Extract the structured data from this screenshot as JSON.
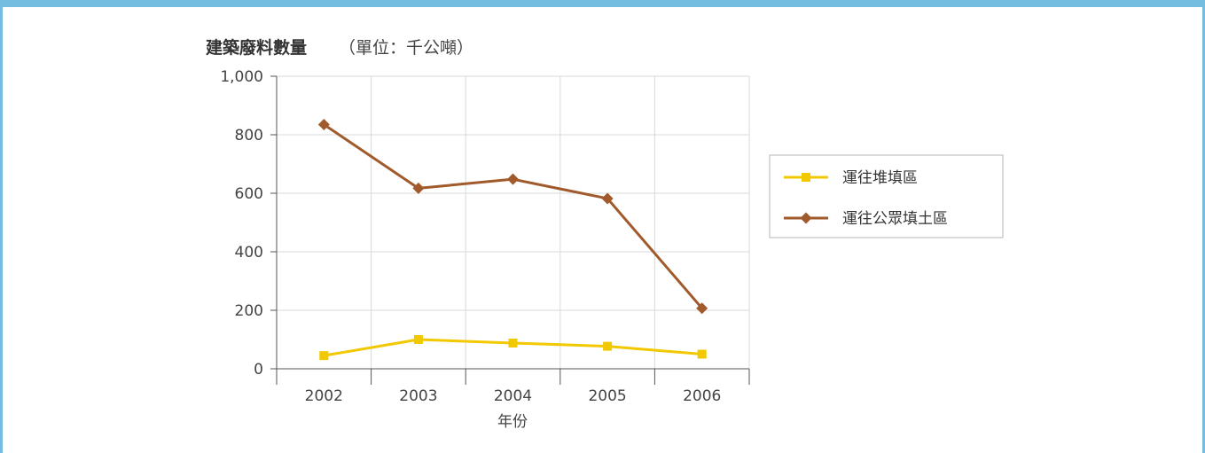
{
  "chart_data": {
    "type": "line",
    "title": "建築廢料數量",
    "title_unit": "（單位：千公噸）",
    "xlabel": "年份",
    "ylabel": "",
    "categories": [
      "2002",
      "2003",
      "2004",
      "2005",
      "2006"
    ],
    "ylim": [
      0,
      1000
    ],
    "yticks": [
      "0",
      "200",
      "400",
      "600",
      "800",
      "1,000"
    ],
    "grid": true,
    "legend_position": "right",
    "series": [
      {
        "name": "運往堆填區",
        "values": [
          45,
          100,
          88,
          77,
          50
        ],
        "color": "#f2c800",
        "marker": "square"
      },
      {
        "name": "運往公眾填土區",
        "values": [
          835,
          617,
          648,
          582,
          207
        ],
        "color": "#a05a2c",
        "marker": "diamond"
      }
    ]
  },
  "colors": {
    "frame": "#74bde0",
    "grid": "#d9d9d9",
    "axis": "#555555"
  }
}
